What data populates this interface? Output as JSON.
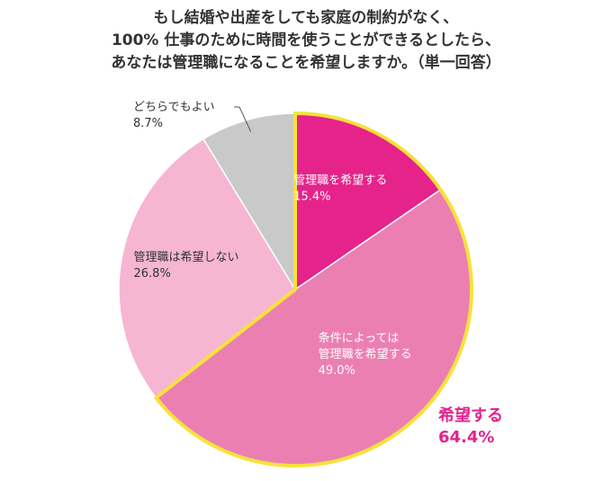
{
  "header": {
    "title_lines": [
      "もし結婚や出産をしても家庭の制約がなく、",
      "100% 仕事のために時間を使うことができるとしたら、",
      "あなたは管理職になることを希望しますか。（単一回答）"
    ]
  },
  "chart_data": {
    "type": "pie",
    "title": "もし結婚や出産をしても家庭の制約がなく、100% 仕事のために時間を使うことができるとしたら、あなたは管理職になることを希望しますか。（単一回答）",
    "slices": [
      {
        "label_lines": [
          "管理職を希望する"
        ],
        "value_label": "15.4%",
        "value": 15.4,
        "color": "#e5238a",
        "label_color": "#ffffff"
      },
      {
        "label_lines": [
          "条件によっては",
          "管理職を希望する"
        ],
        "value_label": "49.0%",
        "value": 49.0,
        "color": "#ec7fb2",
        "label_color": "#ffffff"
      },
      {
        "label_lines": [
          "管理職は希望しない"
        ],
        "value_label": "26.8%",
        "value": 26.8,
        "color": "#f6b6d2",
        "label_color": "#333333"
      },
      {
        "label_lines": [
          "どちらでもよい"
        ],
        "value_label": "8.7%",
        "value": 8.7,
        "color": "#c9c9c9",
        "label_color": "#333333"
      }
    ],
    "highlight": {
      "label": "希望する",
      "value_label": "64.4%",
      "value": 64.4,
      "outline_color": "#f6e23c",
      "text_color": "#e5238a"
    }
  }
}
